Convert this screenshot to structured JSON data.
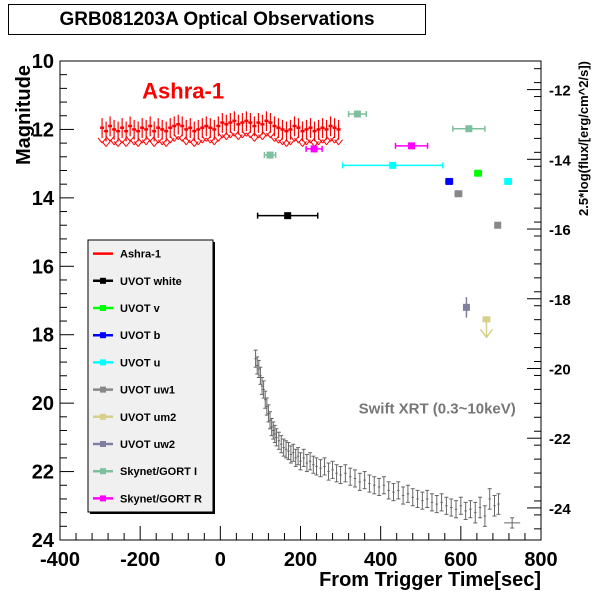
{
  "chart_data": {
    "type": "scatter",
    "title": "GRB081203A Optical Observations",
    "xlabel": "From Trigger Time[sec]",
    "ylabel": "Magnitude",
    "y2label": "2.5*log(flux/[erg/cm^2/s])",
    "xlim": [
      -400,
      800
    ],
    "ylim": [
      10,
      24
    ],
    "y_inverted": true,
    "y2lim": [
      -11.18,
      -24.92
    ],
    "x_ticks": [
      "-400",
      "-200",
      "0",
      "200",
      "400",
      "600",
      "800"
    ],
    "y_ticks": [
      "10",
      "12",
      "14",
      "16",
      "18",
      "20",
      "22",
      "24"
    ],
    "y2_ticks": [
      "-12",
      "-14",
      "-16",
      "-18",
      "-20",
      "-22",
      "-24"
    ],
    "grid": false,
    "legend_position": "left",
    "annotations": [
      {
        "text": "Ashra-1",
        "color": "#ff0000",
        "x": -195,
        "y": 11.1
      },
      {
        "text": "Swift XRT (0.3~10keV)",
        "color": "#777777",
        "x": 345,
        "y": 20.3
      }
    ],
    "series": [
      {
        "name": "Ashra-1",
        "color": "#ff0000",
        "marker": "band",
        "points": [
          {
            "x": -295,
            "y": 11.95
          },
          {
            "x": -285,
            "y": 12.05
          },
          {
            "x": -275,
            "y": 11.9
          },
          {
            "x": -265,
            "y": 12.0
          },
          {
            "x": -255,
            "y": 12.05
          },
          {
            "x": -245,
            "y": 11.95
          },
          {
            "x": -235,
            "y": 12.05
          },
          {
            "x": -225,
            "y": 11.9
          },
          {
            "x": -215,
            "y": 12.0
          },
          {
            "x": -205,
            "y": 12.05
          },
          {
            "x": -195,
            "y": 11.95
          },
          {
            "x": -185,
            "y": 12.0
          },
          {
            "x": -175,
            "y": 11.9
          },
          {
            "x": -165,
            "y": 12.05
          },
          {
            "x": -155,
            "y": 11.95
          },
          {
            "x": -145,
            "y": 12.0
          },
          {
            "x": -135,
            "y": 12.05
          },
          {
            "x": -125,
            "y": 11.95
          },
          {
            "x": -115,
            "y": 11.9
          },
          {
            "x": -105,
            "y": 11.85
          },
          {
            "x": -95,
            "y": 11.9
          },
          {
            "x": -85,
            "y": 12.0
          },
          {
            "x": -75,
            "y": 11.95
          },
          {
            "x": -65,
            "y": 12.05
          },
          {
            "x": -55,
            "y": 12.0
          },
          {
            "x": -45,
            "y": 11.95
          },
          {
            "x": -35,
            "y": 11.9
          },
          {
            "x": -25,
            "y": 11.95
          },
          {
            "x": -15,
            "y": 12.0
          },
          {
            "x": -5,
            "y": 11.9
          },
          {
            "x": 5,
            "y": 11.8
          },
          {
            "x": 15,
            "y": 11.85
          },
          {
            "x": 25,
            "y": 11.8
          },
          {
            "x": 35,
            "y": 11.75
          },
          {
            "x": 45,
            "y": 11.85
          },
          {
            "x": 55,
            "y": 11.8
          },
          {
            "x": 65,
            "y": 11.75
          },
          {
            "x": 75,
            "y": 11.8
          },
          {
            "x": 85,
            "y": 11.9
          },
          {
            "x": 95,
            "y": 11.8
          },
          {
            "x": 105,
            "y": 11.85
          },
          {
            "x": 115,
            "y": 11.75
          },
          {
            "x": 125,
            "y": 11.8
          },
          {
            "x": 135,
            "y": 11.9
          },
          {
            "x": 145,
            "y": 11.95
          },
          {
            "x": 155,
            "y": 12.0
          },
          {
            "x": 165,
            "y": 12.05
          },
          {
            "x": 175,
            "y": 12.0
          },
          {
            "x": 185,
            "y": 11.9
          },
          {
            "x": 195,
            "y": 11.95
          },
          {
            "x": 205,
            "y": 12.05
          },
          {
            "x": 215,
            "y": 12.0
          },
          {
            "x": 225,
            "y": 11.95
          },
          {
            "x": 235,
            "y": 12.05
          },
          {
            "x": 245,
            "y": 12.0
          },
          {
            "x": 255,
            "y": 11.95
          },
          {
            "x": 265,
            "y": 12.0
          },
          {
            "x": 275,
            "y": 11.9
          },
          {
            "x": 285,
            "y": 11.95
          },
          {
            "x": 295,
            "y": 12.0
          }
        ]
      },
      {
        "name": "UVOT white",
        "color": "#000000",
        "marker": "square",
        "points": [
          {
            "x": 168,
            "y": 14.52,
            "xerr": 75,
            "yerr": 0.05
          }
        ]
      },
      {
        "name": "UVOT v",
        "color": "#00ff00",
        "marker": "square",
        "points": [
          {
            "x": 643,
            "y": 13.28,
            "xerr": 8,
            "yerr": 0.08
          }
        ]
      },
      {
        "name": "UVOT b",
        "color": "#0000ff",
        "marker": "square",
        "points": [
          {
            "x": 571,
            "y": 13.52,
            "xerr": 8,
            "yerr": 0.08
          }
        ]
      },
      {
        "name": "UVOT u",
        "color": "#00ffff",
        "marker": "square",
        "points": [
          {
            "x": 430,
            "y": 13.05,
            "xerr": 125,
            "yerr": 0.05
          },
          {
            "x": 718,
            "y": 13.52,
            "xerr": 8,
            "yerr": 0.08
          }
        ]
      },
      {
        "name": "UVOT uw1",
        "color": "#888888",
        "marker": "square",
        "points": [
          {
            "x": 594,
            "y": 13.88,
            "xerr": 8,
            "yerr": 0.08
          },
          {
            "x": 692,
            "y": 14.8,
            "xerr": 6,
            "yerr": 0.08
          }
        ]
      },
      {
        "name": "UVOT um2",
        "color": "#d8d08a",
        "marker": "upper-limit",
        "points": [
          {
            "x": 664,
            "y": 17.55,
            "xerr": 8
          }
        ]
      },
      {
        "name": "UVOT uw2",
        "color": "#7f7f9f",
        "marker": "square",
        "points": [
          {
            "x": 614,
            "y": 17.2,
            "xerr": 5,
            "yerr": 0.3
          }
        ]
      },
      {
        "name": "Skynet/GORT I",
        "color": "#7fbf9f",
        "marker": "square",
        "points": [
          {
            "x": 124,
            "y": 12.75,
            "xerr": 14,
            "yerr": 0.08
          },
          {
            "x": 342,
            "y": 11.55,
            "xerr": 22,
            "yerr": 0.08
          },
          {
            "x": 620,
            "y": 11.98,
            "xerr": 40,
            "yerr": 0.08
          }
        ]
      },
      {
        "name": "Skynet/GORT R",
        "color": "#ff00ff",
        "marker": "square",
        "points": [
          {
            "x": 234,
            "y": 12.57,
            "xerr": 20,
            "yerr": 0.08
          },
          {
            "x": 477,
            "y": 12.48,
            "xerr": 40,
            "yerr": 0.08
          }
        ]
      }
    ],
    "xrt": {
      "name": "Swift XRT (0.3~10keV)",
      "color": "#666666",
      "points": [
        {
          "x": 88,
          "y": 18.7,
          "yerr": 0.25
        },
        {
          "x": 92,
          "y": 18.9,
          "yerr": 0.25
        },
        {
          "x": 96,
          "y": 19.0,
          "yerr": 0.25
        },
        {
          "x": 100,
          "y": 19.2,
          "yerr": 0.25
        },
        {
          "x": 104,
          "y": 19.5,
          "yerr": 0.25
        },
        {
          "x": 108,
          "y": 19.6,
          "yerr": 0.25
        },
        {
          "x": 112,
          "y": 19.9,
          "yerr": 0.25
        },
        {
          "x": 116,
          "y": 20.1,
          "yerr": 0.25
        },
        {
          "x": 120,
          "y": 20.3,
          "yerr": 0.25
        },
        {
          "x": 124,
          "y": 20.5,
          "yerr": 0.25
        },
        {
          "x": 128,
          "y": 20.7,
          "yerr": 0.25
        },
        {
          "x": 132,
          "y": 20.8,
          "yerr": 0.25
        },
        {
          "x": 136,
          "y": 20.9,
          "yerr": 0.25
        },
        {
          "x": 140,
          "y": 21.0,
          "yerr": 0.25
        },
        {
          "x": 146,
          "y": 21.1,
          "yerr": 0.25
        },
        {
          "x": 152,
          "y": 21.2,
          "yerr": 0.25
        },
        {
          "x": 158,
          "y": 21.3,
          "yerr": 0.25
        },
        {
          "x": 164,
          "y": 21.35,
          "yerr": 0.25
        },
        {
          "x": 170,
          "y": 21.4,
          "yerr": 0.25
        },
        {
          "x": 176,
          "y": 21.5,
          "yerr": 0.25
        },
        {
          "x": 182,
          "y": 21.45,
          "yerr": 0.25
        },
        {
          "x": 188,
          "y": 21.6,
          "yerr": 0.25
        },
        {
          "x": 194,
          "y": 21.55,
          "yerr": 0.25
        },
        {
          "x": 200,
          "y": 21.7,
          "yerr": 0.25
        },
        {
          "x": 208,
          "y": 21.6,
          "yerr": 0.25
        },
        {
          "x": 216,
          "y": 21.75,
          "yerr": 0.25
        },
        {
          "x": 224,
          "y": 21.7,
          "yerr": 0.25
        },
        {
          "x": 232,
          "y": 21.8,
          "yerr": 0.25
        },
        {
          "x": 240,
          "y": 21.85,
          "yerr": 0.25
        },
        {
          "x": 250,
          "y": 21.9,
          "yerr": 0.25
        },
        {
          "x": 260,
          "y": 21.85,
          "yerr": 0.25
        },
        {
          "x": 270,
          "y": 22.0,
          "yerr": 0.25
        },
        {
          "x": 280,
          "y": 21.95,
          "yerr": 0.25
        },
        {
          "x": 290,
          "y": 22.05,
          "yerr": 0.25
        },
        {
          "x": 300,
          "y": 22.1,
          "yerr": 0.25
        },
        {
          "x": 312,
          "y": 22.05,
          "yerr": 0.25
        },
        {
          "x": 324,
          "y": 22.15,
          "yerr": 0.25
        },
        {
          "x": 336,
          "y": 22.2,
          "yerr": 0.25
        },
        {
          "x": 348,
          "y": 22.3,
          "yerr": 0.25
        },
        {
          "x": 360,
          "y": 22.25,
          "yerr": 0.25
        },
        {
          "x": 372,
          "y": 22.35,
          "yerr": 0.25
        },
        {
          "x": 384,
          "y": 22.4,
          "yerr": 0.25
        },
        {
          "x": 396,
          "y": 22.45,
          "yerr": 0.25
        },
        {
          "x": 408,
          "y": 22.4,
          "yerr": 0.25
        },
        {
          "x": 420,
          "y": 22.55,
          "yerr": 0.25
        },
        {
          "x": 432,
          "y": 22.6,
          "yerr": 0.25
        },
        {
          "x": 444,
          "y": 22.55,
          "yerr": 0.25
        },
        {
          "x": 456,
          "y": 22.7,
          "yerr": 0.25
        },
        {
          "x": 468,
          "y": 22.65,
          "yerr": 0.25
        },
        {
          "x": 480,
          "y": 22.75,
          "yerr": 0.25
        },
        {
          "x": 492,
          "y": 22.8,
          "yerr": 0.25
        },
        {
          "x": 504,
          "y": 22.85,
          "yerr": 0.25
        },
        {
          "x": 516,
          "y": 22.8,
          "yerr": 0.25
        },
        {
          "x": 528,
          "y": 22.9,
          "yerr": 0.25
        },
        {
          "x": 540,
          "y": 22.95,
          "yerr": 0.25
        },
        {
          "x": 552,
          "y": 22.9,
          "yerr": 0.25
        },
        {
          "x": 564,
          "y": 23.0,
          "yerr": 0.25
        },
        {
          "x": 576,
          "y": 23.05,
          "yerr": 0.25
        },
        {
          "x": 588,
          "y": 23.1,
          "yerr": 0.25
        },
        {
          "x": 600,
          "y": 23.0,
          "yerr": 0.25
        },
        {
          "x": 612,
          "y": 23.15,
          "yerr": 0.25
        },
        {
          "x": 624,
          "y": 23.1,
          "yerr": 0.25
        },
        {
          "x": 636,
          "y": 23.2,
          "yerr": 0.3
        },
        {
          "x": 648,
          "y": 23.05,
          "yerr": 0.3
        },
        {
          "x": 660,
          "y": 23.3,
          "yerr": 0.3
        },
        {
          "x": 672,
          "y": 22.8,
          "yerr": 0.3
        },
        {
          "x": 684,
          "y": 23.0,
          "yerr": 0.3
        },
        {
          "x": 694,
          "y": 22.95,
          "yerr": 0.3
        },
        {
          "x": 728,
          "y": 23.5,
          "xerr": 20,
          "yerr": 0.15
        }
      ]
    }
  }
}
